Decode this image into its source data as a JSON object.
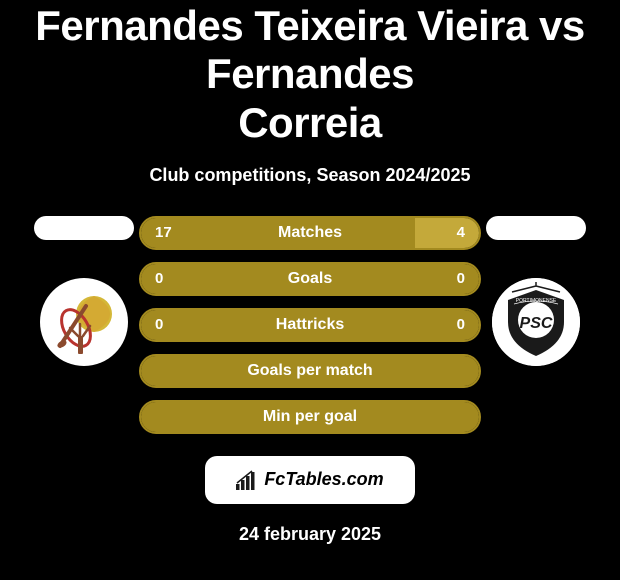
{
  "header": {
    "title_line1": "Fernandes Teixeira Vieira vs Fernandes",
    "title_line2": "Correia",
    "subtitle": "Club competitions, Season 2024/2025"
  },
  "players": {
    "left_name": "",
    "right_name": ""
  },
  "stats": [
    {
      "label": "Matches",
      "left_value": "17",
      "right_value": "4",
      "left_pct": 81,
      "right_pct": 19,
      "left_color": "#a38a1f",
      "right_color": "#c4a93a"
    },
    {
      "label": "Goals",
      "left_value": "0",
      "right_value": "0",
      "left_pct": 50,
      "right_pct": 50,
      "left_color": "#a38a1f",
      "right_color": "#a38a1f"
    },
    {
      "label": "Hattricks",
      "left_value": "0",
      "right_value": "0",
      "left_pct": 50,
      "right_pct": 50,
      "left_color": "#a38a1f",
      "right_color": "#a38a1f"
    },
    {
      "label": "Goals per match",
      "left_value": "",
      "right_value": "",
      "left_pct": 100,
      "right_pct": 0,
      "left_color": "#a38a1f",
      "right_color": "#a38a1f"
    },
    {
      "label": "Min per goal",
      "left_value": "",
      "right_value": "",
      "left_pct": 100,
      "right_pct": 0,
      "left_color": "#a38a1f",
      "right_color": "#a38a1f"
    }
  ],
  "footer": {
    "site_label": "FcTables.com",
    "date": "24 february 2025"
  },
  "styling": {
    "background": "#000000",
    "text_color": "#ffffff",
    "bar_border": "#a38a1f",
    "pill_bg": "#ffffff",
    "title_fontsize": 42,
    "subtitle_fontsize": 18
  }
}
